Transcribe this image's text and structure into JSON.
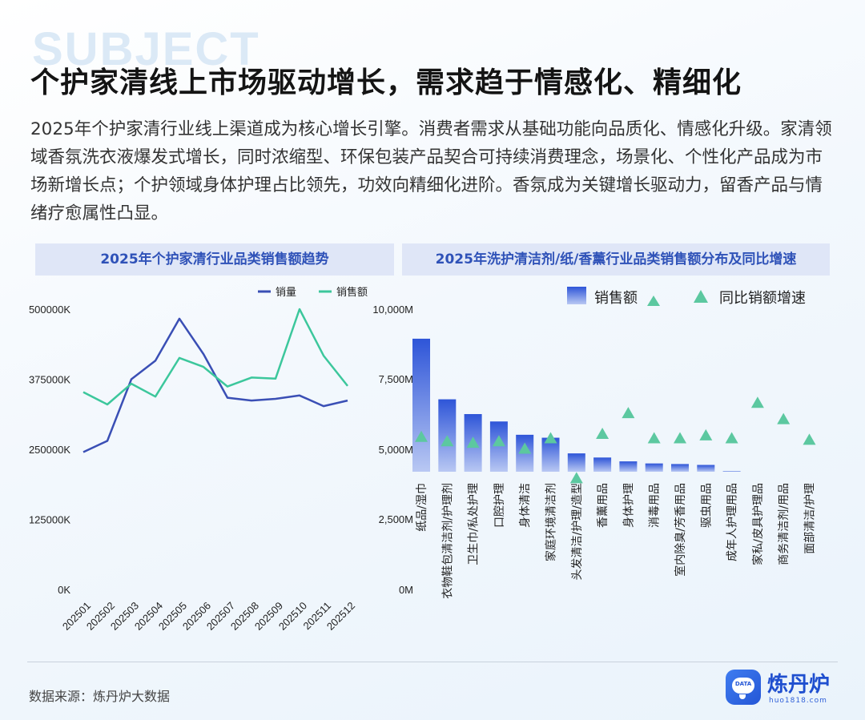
{
  "watermark": "SUBJECT",
  "title": "个护家清线上市场驱动增长，需求趋于情感化、精细化",
  "intro": "2025年个护家清行业线上渠道成为核心增长引擎。消费者需求从基础功能向品质化、情感化升级。家清领域香氛洗衣液爆发式增长，同时浓缩型、环保包装产品契合可持续消费理念，场景化、个性化产品成为市场新增长点；个护领域身体护理占比领先，功效向精细化进阶。香氛成为关键增长驱动力，留香产品与情绪疗愈属性凸显。",
  "source": "数据来源：炼丹炉大数据",
  "logo": {
    "name": "炼丹炉",
    "url": "huo1818.com",
    "badge": "DATA"
  },
  "colors": {
    "line_volume": "#3a4fb5",
    "line_sales": "#3cc79c",
    "bar_top": "#2e55d8",
    "bar_bottom": "#b9c8f3",
    "triangle": "#5cc8a0",
    "title_bar": "#dfe6f7",
    "title_text": "#2f52b8"
  },
  "chart_data": [
    {
      "type": "line",
      "title": "2025年个护家清行业品类销售额趋势",
      "x": [
        "202501",
        "202502",
        "202503",
        "202504",
        "202505",
        "202506",
        "202507",
        "202508",
        "202509",
        "202510",
        "202511",
        "202512"
      ],
      "yticks": [
        "0K",
        "125000K",
        "250000K",
        "375000K",
        "500000K"
      ],
      "ylim": [
        0,
        500000
      ],
      "legend_position": "top-right",
      "series": [
        {
          "name": "销量",
          "values": [
            245000,
            265000,
            375000,
            408000,
            483000,
            420000,
            342000,
            337000,
            340000,
            346000,
            327000,
            337000
          ]
        },
        {
          "name": "销售额",
          "values": [
            352000,
            330000,
            367000,
            344000,
            413000,
            397000,
            362000,
            378000,
            376000,
            500000,
            417000,
            363000
          ]
        }
      ]
    },
    {
      "type": "bar",
      "title": "2025年洗护清洁剂/纸/香薰行业品类销售额分布及同比增速",
      "categories": [
        "纸品/湿巾",
        "衣物鞋包清洁剂/护理剂",
        "卫生巾/私处护理",
        "口腔护理",
        "身体清洁",
        "家庭环境清洁剂",
        "头发清洁/护理/造型",
        "香薰用品",
        "身体护理",
        "消毒用品",
        "室内除臭/芳香用品",
        "驱虫用品",
        "成年人护理用品",
        "家私/皮具护理品",
        "商务清洁剂/用品",
        "面部清洁/护理"
      ],
      "yticks": [
        "0M",
        "2,500M",
        "5,000M",
        "7,500M",
        "10,000M"
      ],
      "ylim": [
        0,
        10000
      ],
      "legend_position": "top-right",
      "series": [
        {
          "name": "销售额",
          "values": [
            9000,
            6950,
            6450,
            6200,
            5750,
            5650,
            5120,
            4980,
            4850,
            4780,
            4760,
            4730,
            4520,
            4440,
            4300,
            4280
          ]
        },
        {
          "name": "同比销额增速",
          "values": [
            5700,
            5550,
            5500,
            5550,
            5300,
            5650,
            4300,
            5800,
            6500,
            5650,
            5650,
            5750,
            5650,
            6850,
            6300,
            5600
          ]
        }
      ],
      "legend_extra_triangle": true
    }
  ]
}
